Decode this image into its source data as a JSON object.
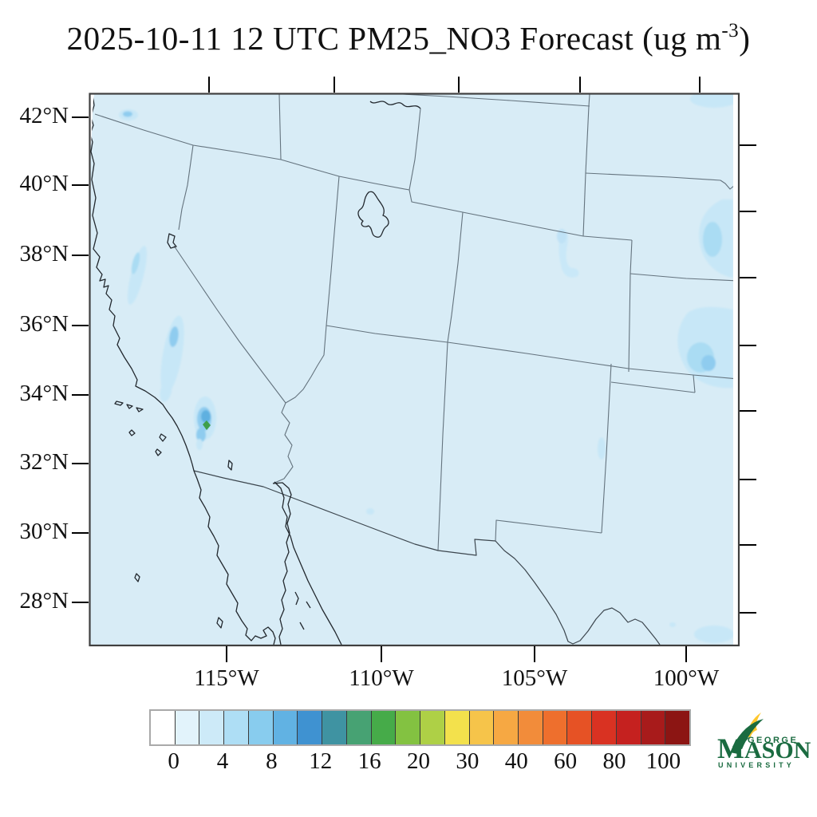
{
  "title": {
    "prefix": "2025-10-11 12 UTC PM25_NO3 Forecast (ug m",
    "superscript": "-3",
    "suffix": ")"
  },
  "map": {
    "lat_labels": [
      "42°N",
      "40°N",
      "38°N",
      "36°N",
      "34°N",
      "32°N",
      "30°N",
      "28°N"
    ],
    "lon_labels": [
      "115°W",
      "110°W",
      "105°W",
      "100°W"
    ],
    "background_color": "#d8ecf6",
    "features": [
      "state-borders",
      "us-mexico-border",
      "pacific-coastline",
      "baja-california",
      "gulf-of-california",
      "great-salt-lake",
      "lake-tahoe",
      "snake-river",
      "rio-grande",
      "channel-islands"
    ]
  },
  "colorbar": {
    "tick_labels": [
      "0",
      "4",
      "8",
      "12",
      "16",
      "20",
      "30",
      "40",
      "60",
      "80",
      "100"
    ],
    "colors": [
      "#ffffff",
      "#e2f3fb",
      "#cdeaf8",
      "#aedef5",
      "#88ccee",
      "#61b2e3",
      "#3f92d1",
      "#3f93a2",
      "#47a273",
      "#46ab49",
      "#83c241",
      "#aed046",
      "#f3e14c",
      "#f6c44a",
      "#f6a843",
      "#f28c3a",
      "#ee6f2d",
      "#e65225",
      "#d93222",
      "#c5211f",
      "#a81b1b",
      "#8c1513"
    ]
  },
  "logo": {
    "top_word": "GEORGE",
    "main_word": "MASON",
    "bottom_word": "UNIVERSITY",
    "green": "#1a6b40",
    "yellow": "#ffc72c"
  },
  "chart_data": {
    "type": "heatmap",
    "title": "2025-10-11 12 UTC PM25_NO3 Forecast (ug m-3)",
    "x_tick_labels": [
      "115°W",
      "110°W",
      "105°W",
      "100°W"
    ],
    "y_tick_labels": [
      "42°N",
      "40°N",
      "38°N",
      "36°N",
      "34°N",
      "32°N",
      "30°N",
      "28°N"
    ],
    "colorbar_bin_edges": [
      0,
      2,
      4,
      6,
      8,
      10,
      12,
      14,
      16,
      18,
      20,
      25,
      30,
      35,
      40,
      50,
      60,
      70,
      80,
      90,
      100
    ],
    "colorbar_tick_labels": [
      0,
      4,
      8,
      12,
      16,
      20,
      30,
      40,
      60,
      80,
      100
    ],
    "units": "ug m-3",
    "background_value_range": "0-2",
    "hotspots": [
      {
        "location": "Imperial Valley / Salton Sea area, southern California",
        "peak_value_range": "16-18",
        "surrounding_value_range": "8-12"
      },
      {
        "location": "southern Sierra Nevada / San Joaquin Valley, California",
        "value_range": "2-8"
      },
      {
        "location": "far northern California near 42N",
        "value_range": "4-8"
      },
      {
        "location": "Colorado Front Range",
        "value_range": "2-4"
      },
      {
        "location": "western Nebraska and Kansas near east edge of domain",
        "value_range": "2-8"
      },
      {
        "location": "small spots in New Mexico, Arizona and west Texas",
        "value_range": "2-4"
      }
    ]
  }
}
